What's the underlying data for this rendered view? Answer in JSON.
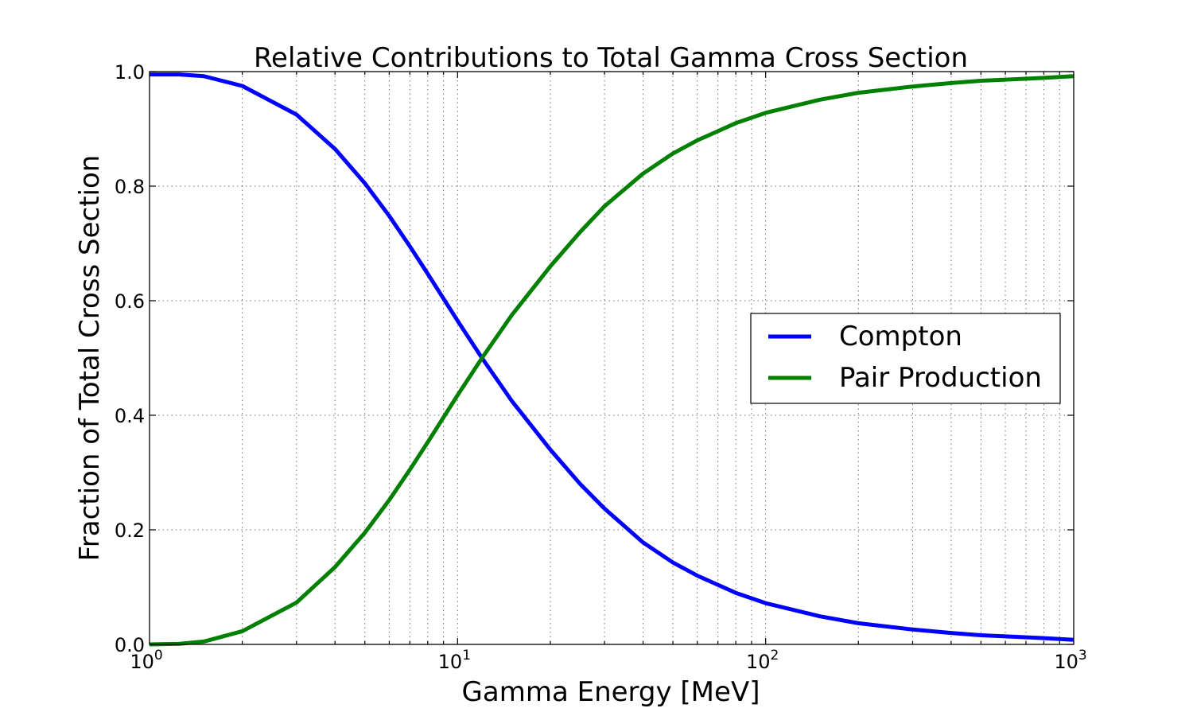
{
  "chart_data": {
    "type": "line",
    "title": "Relative Contributions to Total Gamma Cross Section",
    "xlabel": "Gamma Energy [MeV]",
    "ylabel": "Fraction of Total Cross Section",
    "xscale": "log",
    "xlim": [
      1,
      1000
    ],
    "ylim": [
      0.0,
      1.0
    ],
    "grid": true,
    "legend_position": "center-right",
    "yticks": [
      "0.0",
      "0.2",
      "0.4",
      "0.6",
      "0.8",
      "1.0"
    ],
    "xticks": [
      {
        "base": "10",
        "exp": "0"
      },
      {
        "base": "10",
        "exp": "1"
      },
      {
        "base": "10",
        "exp": "2"
      },
      {
        "base": "10",
        "exp": "3"
      }
    ],
    "x": [
      1,
      1.25,
      1.5,
      2,
      3,
      4,
      5,
      6,
      7,
      8,
      10,
      12,
      15,
      20,
      25,
      30,
      40,
      50,
      60,
      80,
      100,
      150,
      200,
      300,
      400,
      500,
      600,
      800,
      1000
    ],
    "series": [
      {
        "name": "Compton",
        "color": "#0000ff",
        "values": [
          0.995,
          0.995,
          0.992,
          0.975,
          0.925,
          0.865,
          0.805,
          0.748,
          0.695,
          0.647,
          0.565,
          0.5,
          0.425,
          0.34,
          0.28,
          0.237,
          0.178,
          0.143,
          0.12,
          0.09,
          0.072,
          0.049,
          0.037,
          0.026,
          0.02,
          0.016,
          0.014,
          0.011,
          0.008
        ]
      },
      {
        "name": "Pair Production",
        "color": "#008000",
        "values": [
          0.0,
          0.001,
          0.005,
          0.023,
          0.073,
          0.135,
          0.195,
          0.252,
          0.305,
          0.353,
          0.435,
          0.5,
          0.575,
          0.66,
          0.72,
          0.765,
          0.822,
          0.857,
          0.88,
          0.91,
          0.928,
          0.951,
          0.963,
          0.974,
          0.98,
          0.984,
          0.986,
          0.989,
          0.992
        ]
      }
    ]
  }
}
